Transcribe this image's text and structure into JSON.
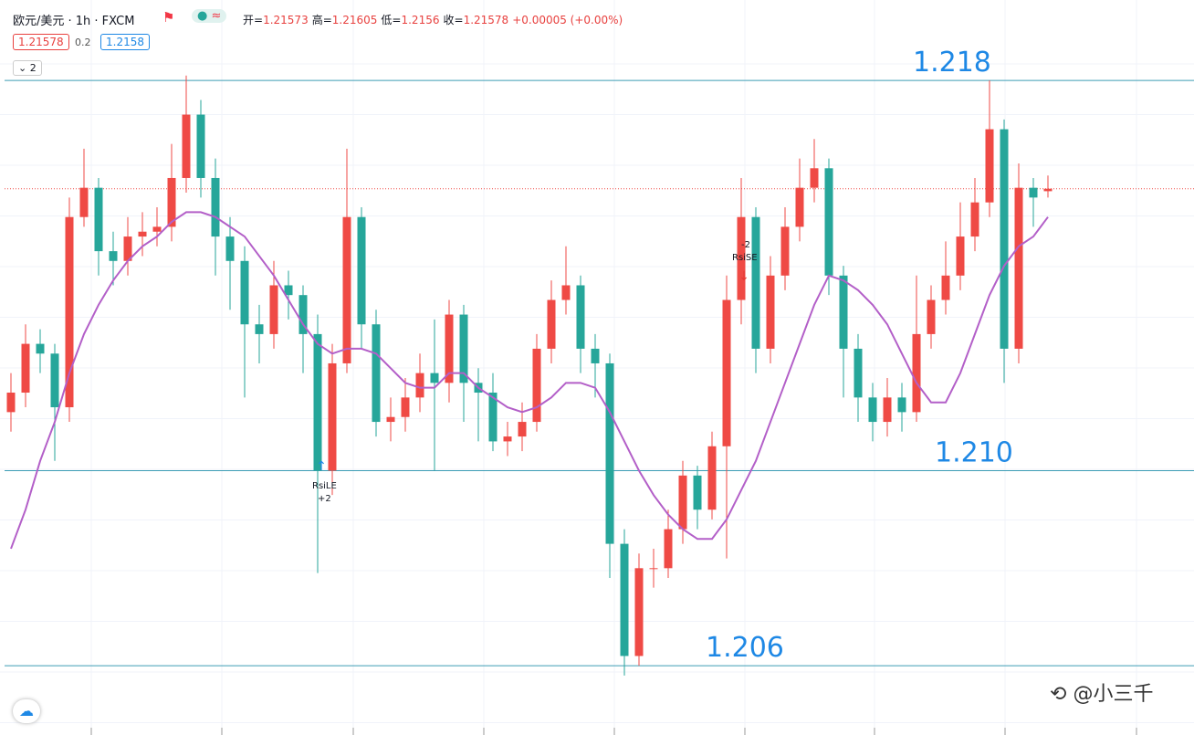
{
  "chart_data": {
    "type": "candlestick",
    "title": "欧元/美元 · 1h · FXCM",
    "ohlc_labels": [
      "开",
      "高",
      "低",
      "收"
    ],
    "change": "+0.00005 (+0.00%)",
    "bid": 1.21578,
    "spread": 0.2,
    "ask": 1.2158,
    "indicator_count": 2,
    "up_color": "#ef4a45",
    "down_color": "#26a69a",
    "ylim": [
      1.20458,
      1.21965
    ],
    "open": [
      1.2112,
      1.2116,
      1.2126,
      1.2124,
      1.2113,
      1.2152,
      1.2158,
      1.2145,
      1.2143,
      1.2148,
      1.2149,
      1.215,
      1.216,
      1.2173,
      1.216,
      1.2148,
      1.2143,
      1.213,
      1.2128,
      1.2138,
      1.2136,
      1.2128,
      1.21,
      1.2122,
      1.2152,
      1.213,
      1.211,
      1.2111,
      1.2115,
      1.212,
      1.2118,
      1.2132,
      1.2118,
      1.2116,
      1.2106,
      1.2107,
      1.211,
      1.2125,
      1.2135,
      1.2138,
      1.2125,
      1.2122,
      1.2085,
      1.2062,
      1.208,
      1.208,
      1.2088,
      1.2099,
      1.2092,
      1.2105,
      1.2135,
      1.2152,
      1.2125,
      1.214,
      1.215,
      1.2158,
      1.2162,
      1.214,
      1.2125,
      1.2115,
      1.211,
      1.2115,
      1.2112,
      1.2128,
      1.2135,
      1.214,
      1.2148,
      1.2155,
      1.217,
      1.2125,
      1.2158,
      1.21573
    ],
    "high": [
      1.212,
      1.213,
      1.2129,
      1.2126,
      1.2156,
      1.2166,
      1.216,
      1.2149,
      1.2152,
      1.2153,
      1.2154,
      1.2167,
      1.2181,
      1.2176,
      1.2164,
      1.2152,
      1.2146,
      1.2134,
      1.2143,
      1.2141,
      1.2138,
      1.2132,
      1.2126,
      1.2166,
      1.2154,
      1.2133,
      1.2115,
      1.2119,
      1.2124,
      1.2131,
      1.2135,
      1.2134,
      1.2121,
      1.212,
      1.211,
      1.2114,
      1.2128,
      1.2139,
      1.2146,
      1.214,
      1.2128,
      1.2124,
      1.2088,
      1.2083,
      1.2084,
      1.2092,
      1.2102,
      1.2101,
      1.2108,
      1.214,
      1.216,
      1.2154,
      1.2144,
      1.2154,
      1.2164,
      1.2168,
      1.2164,
      1.2142,
      1.2128,
      1.2118,
      1.2119,
      1.2118,
      1.214,
      1.2138,
      1.2147,
      1.2155,
      1.216,
      1.218,
      1.2172,
      1.2163,
      1.216,
      1.21605
    ],
    "low": [
      1.2108,
      1.2113,
      1.212,
      1.2102,
      1.211,
      1.215,
      1.214,
      1.2138,
      1.214,
      1.2144,
      1.2146,
      1.2147,
      1.2157,
      1.2156,
      1.214,
      1.2133,
      1.2115,
      1.2122,
      1.2125,
      1.2131,
      1.212,
      1.2079,
      1.2095,
      1.212,
      1.2125,
      1.2107,
      1.2106,
      1.2108,
      1.2112,
      1.21,
      1.2114,
      1.211,
      1.2106,
      1.2104,
      1.2103,
      1.2104,
      1.2108,
      1.2122,
      1.2132,
      1.212,
      1.2115,
      1.2078,
      1.2058,
      1.206,
      1.2076,
      1.2078,
      1.2085,
      1.2088,
      1.209,
      1.2082,
      1.213,
      1.212,
      1.2122,
      1.2137,
      1.2147,
      1.2155,
      1.2136,
      1.2115,
      1.211,
      1.2106,
      1.2107,
      1.2108,
      1.211,
      1.2125,
      1.2132,
      1.2137,
      1.2145,
      1.2152,
      1.2118,
      1.2122,
      1.215,
      1.2156
    ],
    "close": [
      1.2116,
      1.2126,
      1.2124,
      1.2113,
      1.2152,
      1.2158,
      1.2145,
      1.2143,
      1.2148,
      1.2149,
      1.215,
      1.216,
      1.2173,
      1.216,
      1.2148,
      1.2143,
      1.213,
      1.2128,
      1.2138,
      1.2136,
      1.2128,
      1.21,
      1.2122,
      1.2152,
      1.213,
      1.211,
      1.2111,
      1.2115,
      1.212,
      1.2118,
      1.2132,
      1.2118,
      1.2116,
      1.2106,
      1.2107,
      1.211,
      1.2125,
      1.2135,
      1.2138,
      1.2125,
      1.2122,
      1.2085,
      1.2062,
      1.208,
      1.208,
      1.2088,
      1.2099,
      1.2092,
      1.2105,
      1.2135,
      1.2152,
      1.2125,
      1.214,
      1.215,
      1.2158,
      1.2162,
      1.214,
      1.2125,
      1.2115,
      1.211,
      1.2115,
      1.2112,
      1.2128,
      1.2135,
      1.214,
      1.2148,
      1.2155,
      1.217,
      1.2125,
      1.2158,
      1.2156,
      1.21578
    ],
    "ma": {
      "color": "#b35fc8",
      "values": [
        1.2084,
        1.2092,
        1.2102,
        1.211,
        1.212,
        1.2128,
        1.2134,
        1.2139,
        1.2143,
        1.2146,
        1.2148,
        1.2151,
        1.2153,
        1.2153,
        1.2152,
        1.215,
        1.2148,
        1.2144,
        1.214,
        1.2135,
        1.213,
        1.2126,
        1.2124,
        1.2125,
        1.2125,
        1.2124,
        1.2121,
        1.2118,
        1.2117,
        1.2117,
        1.212,
        1.212,
        1.2117,
        1.2115,
        1.2113,
        1.2112,
        1.2113,
        1.2115,
        1.2118,
        1.2118,
        1.2117,
        1.2112,
        1.2106,
        1.21,
        1.2095,
        1.2091,
        1.2088,
        1.2086,
        1.2086,
        1.209,
        1.2096,
        1.2102,
        1.211,
        1.2118,
        1.2126,
        1.2134,
        1.214,
        1.2139,
        1.2137,
        1.2134,
        1.213,
        1.2124,
        1.2118,
        1.2114,
        1.2114,
        1.212,
        1.2128,
        1.2136,
        1.2142,
        1.2146,
        1.2148,
        1.2152
      ]
    },
    "levels": [
      1.218,
      {
        "value": 1.21,
        "label": "1.210"
      },
      1.206
    ],
    "level_color": "#3d9db5",
    "level_label_color": "#1e88e5",
    "signals": [
      {
        "label": "RsiLE",
        "qty": "+2"
      },
      {
        "label": "RsiSE",
        "qty": "-2"
      }
    ],
    "watermark": "@小三千"
  }
}
